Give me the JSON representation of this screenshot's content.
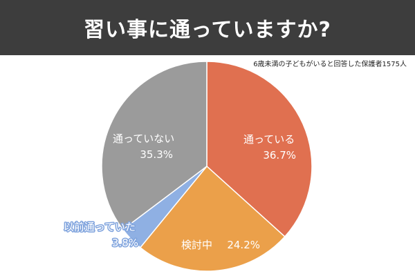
{
  "chart_data": {
    "type": "pie",
    "title": "習い事に通っていますか?",
    "subtitle": "6歳未満の子どもがいると回答した保護者1575人",
    "slices": [
      {
        "label": "通っている",
        "value": 36.7,
        "value_text": "36.7%",
        "color": "#e07050"
      },
      {
        "label": "検討中",
        "value": 24.2,
        "value_text": "24.2%",
        "color": "#eba04a"
      },
      {
        "label": "以前通っていた",
        "value": 3.8,
        "value_text": "3.8%",
        "color": "#8fb0e3"
      },
      {
        "label": "通っていない",
        "value": 35.3,
        "value_text": "35.3%",
        "color": "#9b9b9b"
      }
    ]
  }
}
